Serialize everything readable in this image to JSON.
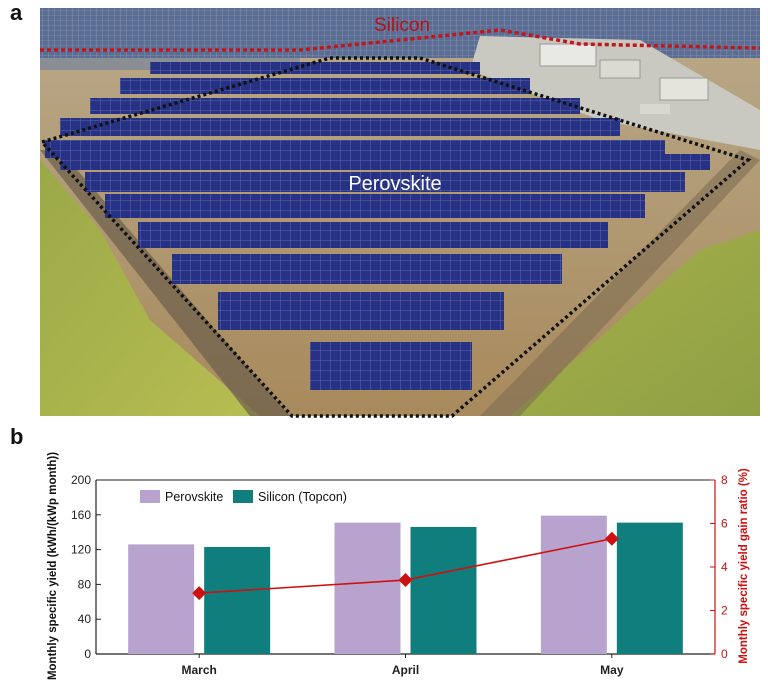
{
  "panels": {
    "a": "a",
    "b": "b"
  },
  "photo": {
    "label_silicon": "Silicon",
    "label_perovskite": "Perovskite",
    "colors": {
      "silicon_outline": "#c0161c",
      "perovskite_outline": "#111111",
      "ground": "#b69a6c",
      "pond": "#a8b24a",
      "panel": "#2a3289"
    }
  },
  "chart_data": {
    "type": "bar",
    "categories": [
      "March",
      "April",
      "May"
    ],
    "series": [
      {
        "name": "Perovskite",
        "values": [
          126,
          151,
          159
        ],
        "color": "#b7a3ce"
      },
      {
        "name": "Silicon (Topcon)",
        "values": [
          123,
          146,
          151
        ],
        "color": "#117e7e"
      }
    ],
    "line_series": {
      "values": [
        2.8,
        3.4,
        5.3
      ],
      "color": "#cf1010",
      "axis": "right"
    },
    "ylabel": "Monthly specific yield (kWh/(kWp month))",
    "y2label": "Monthly specific yield gain ratio (%)",
    "ylim": [
      0,
      200
    ],
    "y2lim": [
      0,
      8
    ],
    "yticks": [
      "0",
      "40",
      "80",
      "120",
      "160",
      "200"
    ],
    "y2ticks": [
      "0",
      "2",
      "4",
      "6",
      "8"
    ],
    "legend_position": "top-left",
    "grid": false
  }
}
